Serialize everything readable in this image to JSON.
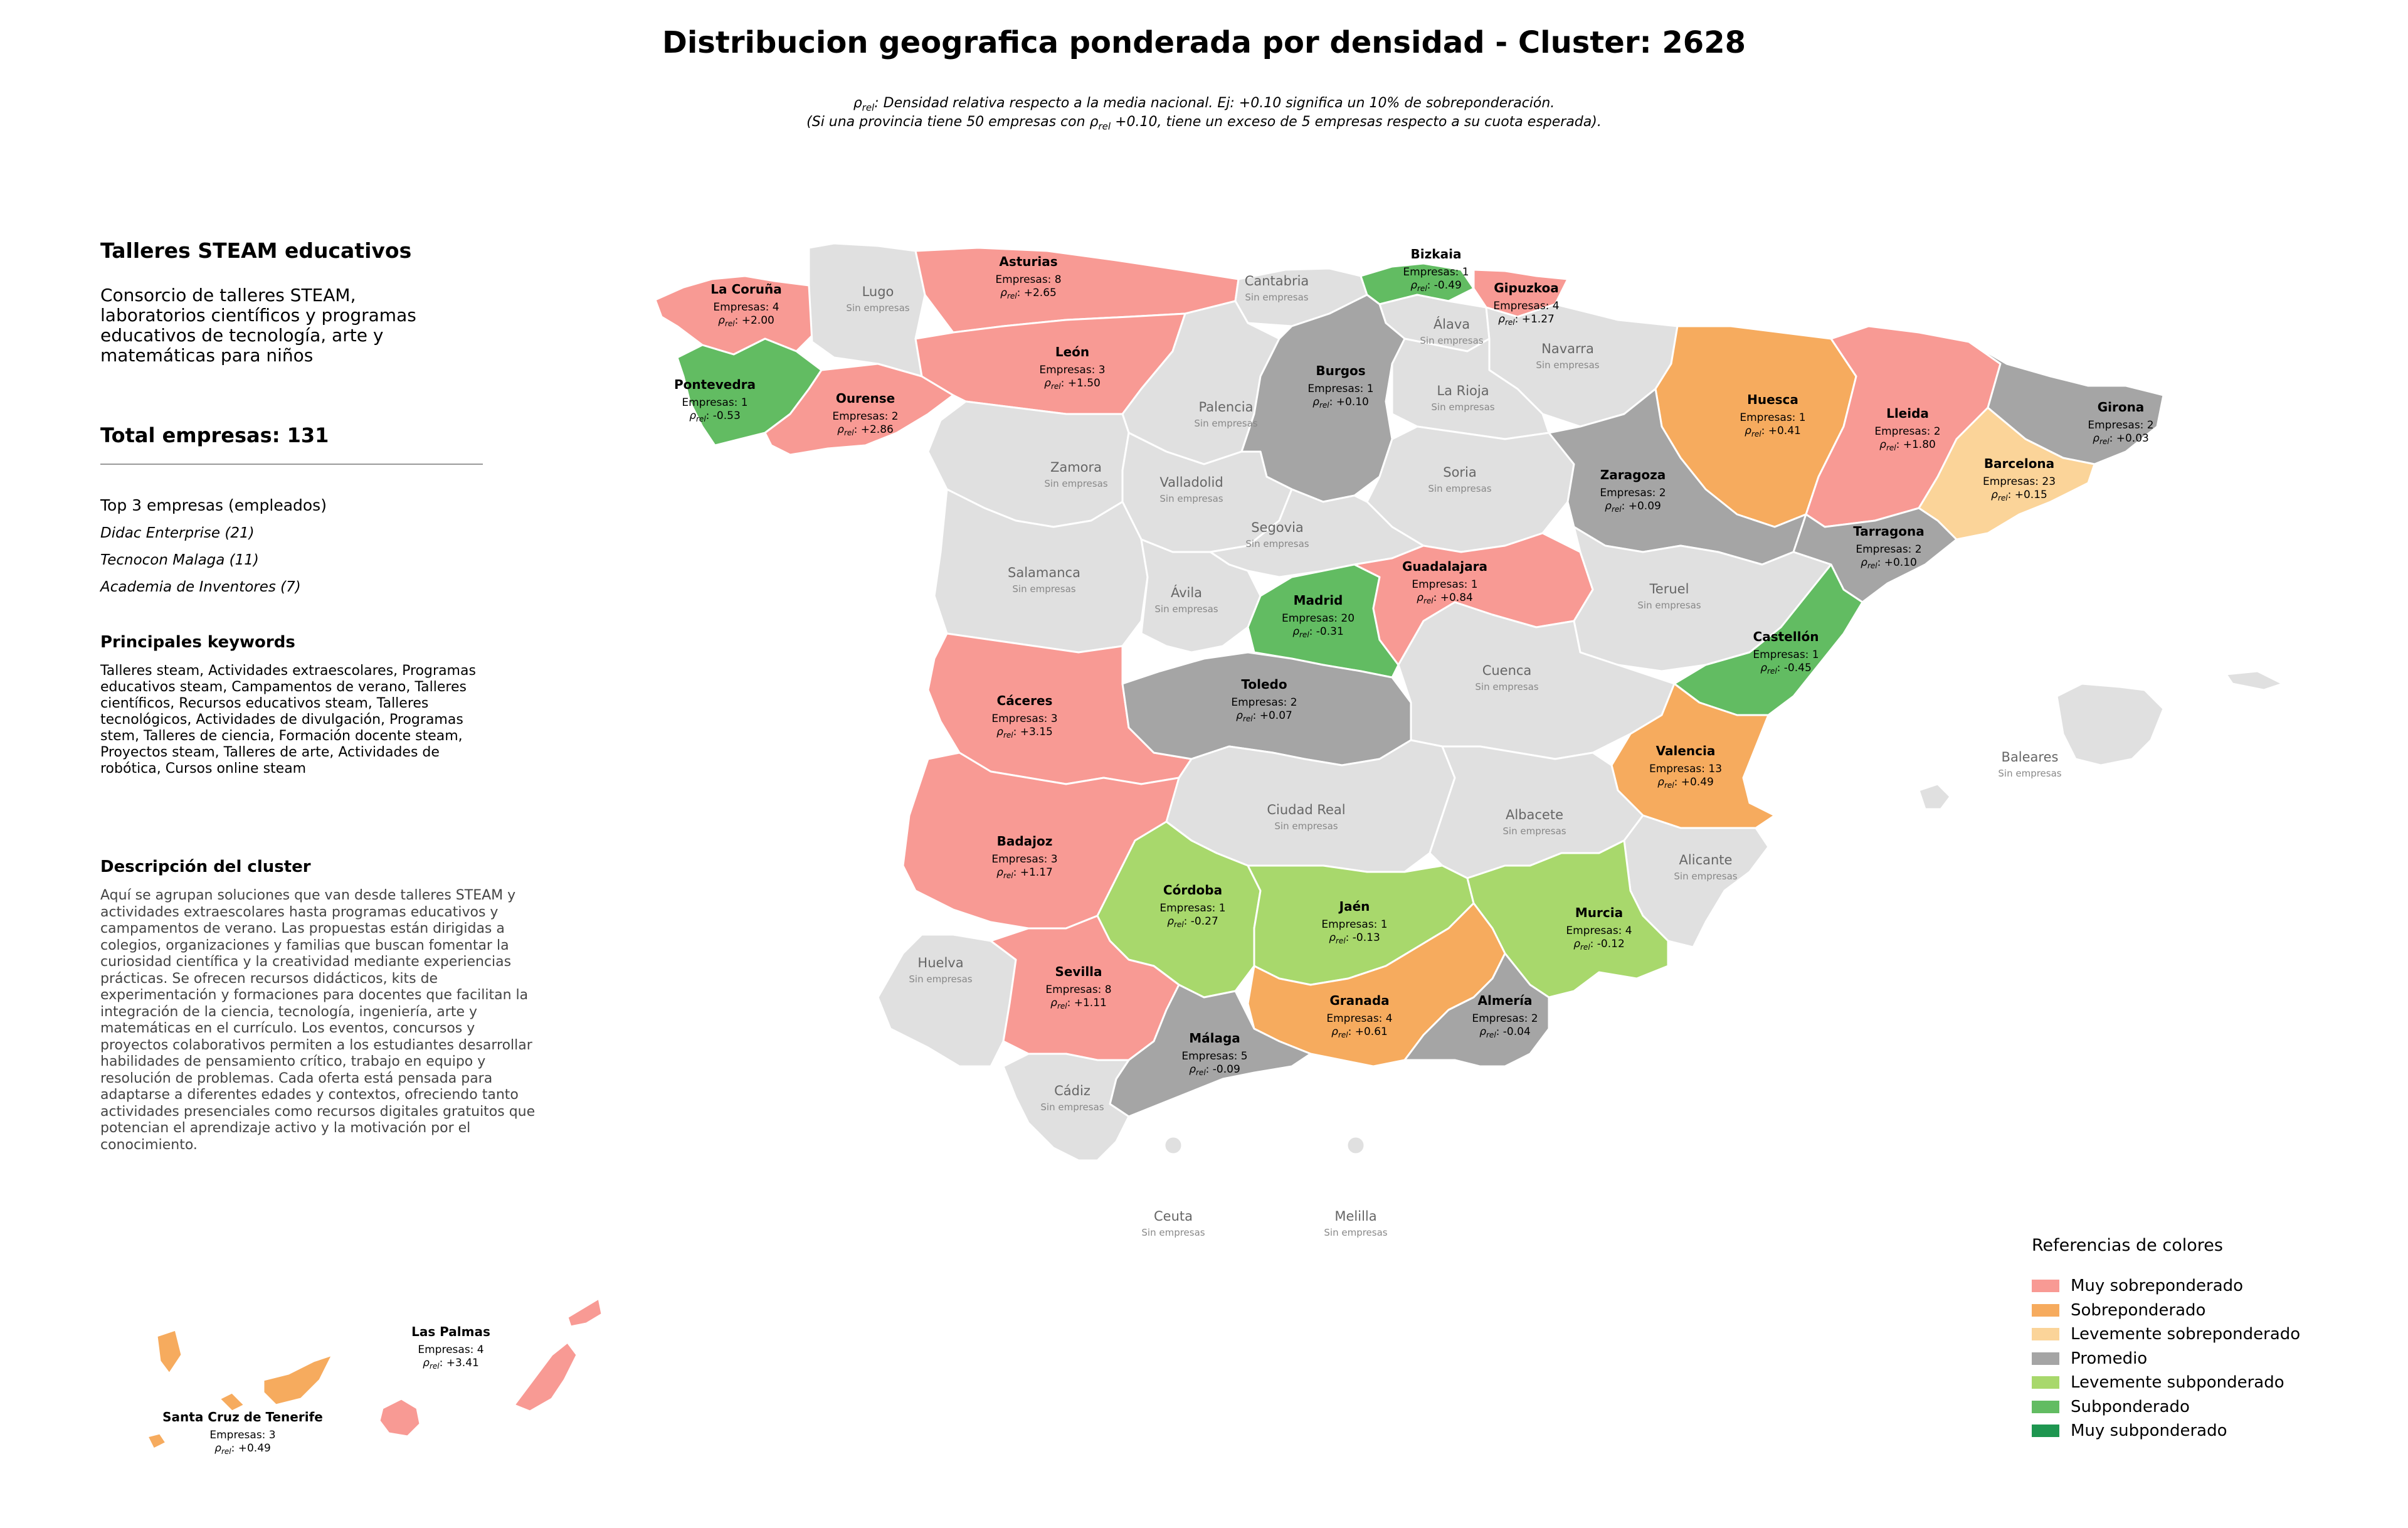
{
  "title": "Distribucion geografica ponderada por densidad - Cluster: 2628",
  "subtitle": {
    "rho": "ρ",
    "rel": "rel",
    "line1_rest": ": Densidad relativa respecto a la media nacional. Ej: +0.10 significa un 10% de sobreponderación.",
    "line2_pre": "(Si una provincia tiene 50 empresas con ",
    "line2_post": " +0.10, tiene un exceso de 5 empresas respecto a su cuota esperada)."
  },
  "panel": {
    "cluster_name": "Talleres STEAM educativos",
    "cluster_summary": "Consorcio de talleres STEAM, laboratorios científicos y programas educativos de tecnología, arte y matemáticas para niños",
    "total": "Total empresas: 131",
    "top_title": "Top 3 empresas (empleados)",
    "top": [
      "Didac Enterprise (21)",
      "Tecnocon Malaga (11)",
      "Academia de Inventores (7)"
    ],
    "keywords_title": "Principales keywords",
    "keywords": "Talleres steam, Actividades extraescolares, Programas educativos steam, Campamentos de verano, Talleres científicos, Recursos educativos steam, Talleres tecnológicos, Actividades de divulgación, Programas stem, Talleres de ciencia, Formación docente steam, Proyectos steam, Talleres de arte, Actividades de robótica, Cursos online steam",
    "description_title": "Descripción del cluster",
    "description": "Aquí se agrupan soluciones que van desde talleres STEAM y actividades extraescolares hasta programas educativos y campamentos de verano. Las propuestas están dirigidas a colegios, organizaciones y familias que buscan fomentar la curiosidad científica y la creatividad mediante experiencias prácticas. Se ofrecen recursos didácticos, kits de experimentación y formaciones para docentes que facilitan la integración de la ciencia, tecnología, ingeniería, arte y matemáticas en el currículo. Los eventos, concursos y proyectos colaborativos permiten a los estudiantes desarrollar habilidades de pensamiento crítico, trabajo en equipo y resolución de problemas. Cada oferta está pensada para adaptarse a diferentes edades y contextos, ofreciendo tanto actividades presenciales como recursos digitales gratuitos que potencian el aprendizaje activo y la motivación por el conocimiento."
  },
  "colors": {
    "muy_sobre": "#f89a94",
    "sobre": "#f6ab5e",
    "leve_sobre": "#fbd499",
    "promedio": "#a5a5a5",
    "leve_sub": "#a8d86c",
    "sub": "#62bc62",
    "muy_sub": "#1e9650",
    "sin": "#e0e0e0"
  },
  "labels": {
    "empresas_prefix": "Empresas: ",
    "rho": "ρ",
    "rel": "rel",
    "sin_empresas": "Sin empresas"
  },
  "provinces": [
    {
      "id": "coruna",
      "name": "La Coruña",
      "empresas": "4",
      "rho": "+2.00",
      "cat": "muy_sobre"
    },
    {
      "id": "lugo",
      "name": "Lugo",
      "cat": "sin"
    },
    {
      "id": "asturias",
      "name": "Asturias",
      "empresas": "8",
      "rho": "+2.65",
      "cat": "muy_sobre"
    },
    {
      "id": "cantabria",
      "name": "Cantabria",
      "cat": "sin"
    },
    {
      "id": "bizkaia",
      "name": "Bizkaia",
      "empresas": "1",
      "rho": "-0.49",
      "cat": "sub"
    },
    {
      "id": "gipuzkoa",
      "name": "Gipuzkoa",
      "empresas": "4",
      "rho": "+1.27",
      "cat": "muy_sobre"
    },
    {
      "id": "alava",
      "name": "Álava",
      "cat": "sin"
    },
    {
      "id": "navarra",
      "name": "Navarra",
      "cat": "sin"
    },
    {
      "id": "pontevedra",
      "name": "Pontevedra",
      "empresas": "1",
      "rho": "-0.53",
      "cat": "sub"
    },
    {
      "id": "ourense",
      "name": "Ourense",
      "empresas": "2",
      "rho": "+2.86",
      "cat": "muy_sobre"
    },
    {
      "id": "leon",
      "name": "León",
      "empresas": "3",
      "rho": "+1.50",
      "cat": "muy_sobre"
    },
    {
      "id": "palencia",
      "name": "Palencia",
      "cat": "sin"
    },
    {
      "id": "burgos",
      "name": "Burgos",
      "empresas": "1",
      "rho": "+0.10",
      "cat": "promedio"
    },
    {
      "id": "larioja",
      "name": "La Rioja",
      "cat": "sin"
    },
    {
      "id": "huesca",
      "name": "Huesca",
      "empresas": "1",
      "rho": "+0.41",
      "cat": "sobre"
    },
    {
      "id": "lleida",
      "name": "Lleida",
      "empresas": "2",
      "rho": "+1.80",
      "cat": "muy_sobre"
    },
    {
      "id": "girona",
      "name": "Girona",
      "empresas": "2",
      "rho": "+0.03",
      "cat": "promedio"
    },
    {
      "id": "barcelona",
      "name": "Barcelona",
      "empresas": "23",
      "rho": "+0.15",
      "cat": "leve_sobre"
    },
    {
      "id": "zamora",
      "name": "Zamora",
      "cat": "sin"
    },
    {
      "id": "valladolid",
      "name": "Valladolid",
      "cat": "sin"
    },
    {
      "id": "soria",
      "name": "Soria",
      "cat": "sin"
    },
    {
      "id": "zaragoza",
      "name": "Zaragoza",
      "empresas": "2",
      "rho": "+0.09",
      "cat": "promedio"
    },
    {
      "id": "tarragona",
      "name": "Tarragona",
      "empresas": "2",
      "rho": "+0.10",
      "cat": "promedio"
    },
    {
      "id": "segovia",
      "name": "Segovia",
      "cat": "sin"
    },
    {
      "id": "salamanca",
      "name": "Salamanca",
      "cat": "sin"
    },
    {
      "id": "avila",
      "name": "Ávila",
      "cat": "sin"
    },
    {
      "id": "madrid",
      "name": "Madrid",
      "empresas": "20",
      "rho": "-0.31",
      "cat": "sub"
    },
    {
      "id": "guadalajara",
      "name": "Guadalajara",
      "empresas": "1",
      "rho": "+0.84",
      "cat": "muy_sobre"
    },
    {
      "id": "teruel",
      "name": "Teruel",
      "cat": "sin"
    },
    {
      "id": "castellon",
      "name": "Castellón",
      "empresas": "1",
      "rho": "-0.45",
      "cat": "sub"
    },
    {
      "id": "caceres",
      "name": "Cáceres",
      "empresas": "3",
      "rho": "+3.15",
      "cat": "muy_sobre"
    },
    {
      "id": "toledo",
      "name": "Toledo",
      "empresas": "2",
      "rho": "+0.07",
      "cat": "promedio"
    },
    {
      "id": "cuenca",
      "name": "Cuenca",
      "cat": "sin"
    },
    {
      "id": "valencia",
      "name": "Valencia",
      "empresas": "13",
      "rho": "+0.49",
      "cat": "sobre"
    },
    {
      "id": "baleares",
      "name": "Baleares",
      "cat": "sin"
    },
    {
      "id": "badajoz",
      "name": "Badajoz",
      "empresas": "3",
      "rho": "+1.17",
      "cat": "muy_sobre"
    },
    {
      "id": "ciudadreal",
      "name": "Ciudad Real",
      "cat": "sin"
    },
    {
      "id": "albacete",
      "name": "Albacete",
      "cat": "sin"
    },
    {
      "id": "alicante",
      "name": "Alicante",
      "cat": "sin"
    },
    {
      "id": "cordoba",
      "name": "Córdoba",
      "empresas": "1",
      "rho": "-0.27",
      "cat": "leve_sub"
    },
    {
      "id": "jaen",
      "name": "Jaén",
      "empresas": "1",
      "rho": "-0.13",
      "cat": "leve_sub"
    },
    {
      "id": "murcia",
      "name": "Murcia",
      "empresas": "4",
      "rho": "-0.12",
      "cat": "leve_sub"
    },
    {
      "id": "huelva",
      "name": "Huelva",
      "cat": "sin"
    },
    {
      "id": "sevilla",
      "name": "Sevilla",
      "empresas": "8",
      "rho": "+1.11",
      "cat": "muy_sobre"
    },
    {
      "id": "granada",
      "name": "Granada",
      "empresas": "4",
      "rho": "+0.61",
      "cat": "sobre"
    },
    {
      "id": "almeria",
      "name": "Almería",
      "empresas": "2",
      "rho": "-0.04",
      "cat": "promedio"
    },
    {
      "id": "malaga",
      "name": "Málaga",
      "empresas": "5",
      "rho": "-0.09",
      "cat": "promedio"
    },
    {
      "id": "cadiz",
      "name": "Cádiz",
      "cat": "sin"
    },
    {
      "id": "ceuta",
      "name": "Ceuta",
      "cat": "sin"
    },
    {
      "id": "melilla",
      "name": "Melilla",
      "cat": "sin"
    },
    {
      "id": "laspalmas",
      "name": "Las Palmas",
      "empresas": "4",
      "rho": "+3.41",
      "cat": "muy_sobre"
    },
    {
      "id": "tenerife",
      "name": "Santa Cruz de Tenerife",
      "empresas": "3",
      "rho": "+0.49",
      "cat": "sobre"
    }
  ],
  "legend": {
    "title": "Referencias de colores",
    "items": [
      {
        "label": "Muy sobreponderado",
        "color": "#f89a94"
      },
      {
        "label": "Sobreponderado",
        "color": "#f6ab5e"
      },
      {
        "label": "Levemente sobreponderado",
        "color": "#fbd499"
      },
      {
        "label": "Promedio",
        "color": "#a5a5a5"
      },
      {
        "label": "Levemente subponderado",
        "color": "#a8d86c"
      },
      {
        "label": "Subponderado",
        "color": "#62bc62"
      },
      {
        "label": "Muy subponderado",
        "color": "#1e9650"
      }
    ]
  }
}
